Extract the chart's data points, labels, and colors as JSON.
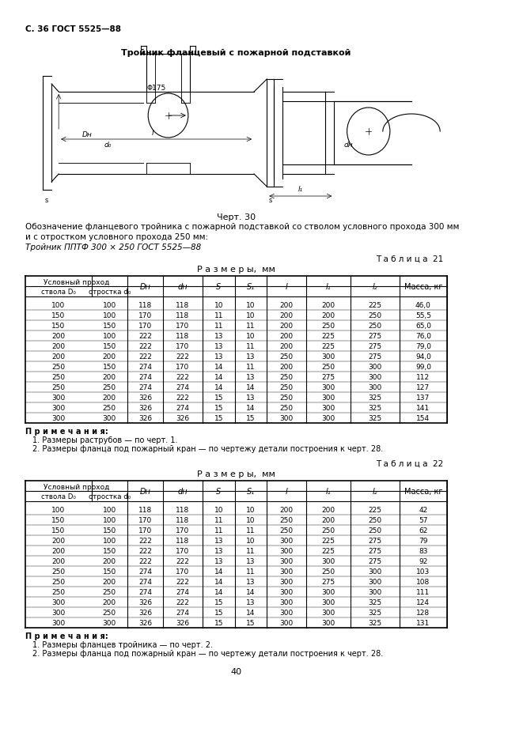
{
  "page_header": "С. 36 ГОСТ 5525—88",
  "drawing_title": "Тройник фланцевый с пожарной подставкой",
  "drawing_caption": "Черт. 30",
  "description_text": "Обозначение фланцевого тройника с пожарной подставкой со стволом условного прохода 300 мм\nи с отростком условного прохода 250 мм:",
  "example_label": "Тройник ППТФ 300 × 250 ГОСТ 5525—88",
  "table21_label": "Т а б л и ц а  21",
  "table21_subtitle": "Р а з м е р ы,  мм",
  "table21_data": [
    [
      100,
      100,
      118,
      118,
      10,
      10,
      200,
      200,
      225,
      "46,0"
    ],
    [
      150,
      100,
      170,
      118,
      11,
      10,
      200,
      200,
      250,
      "55,5"
    ],
    [
      150,
      150,
      170,
      170,
      11,
      11,
      200,
      250,
      250,
      "65,0"
    ],
    [
      200,
      100,
      222,
      118,
      13,
      10,
      200,
      225,
      275,
      "76,0"
    ],
    [
      200,
      150,
      222,
      170,
      13,
      11,
      200,
      225,
      275,
      "79,0"
    ],
    [
      200,
      200,
      222,
      222,
      13,
      13,
      250,
      300,
      275,
      "94,0"
    ],
    [
      250,
      150,
      274,
      170,
      14,
      11,
      200,
      250,
      300,
      "99,0"
    ],
    [
      250,
      200,
      274,
      222,
      14,
      13,
      250,
      275,
      300,
      "112"
    ],
    [
      250,
      250,
      274,
      274,
      14,
      14,
      250,
      300,
      300,
      "127"
    ],
    [
      300,
      200,
      326,
      222,
      15,
      13,
      250,
      300,
      325,
      "137"
    ],
    [
      300,
      250,
      326,
      274,
      15,
      14,
      250,
      300,
      325,
      "141"
    ],
    [
      300,
      300,
      326,
      326,
      15,
      15,
      300,
      300,
      325,
      "154"
    ]
  ],
  "table21_notes": [
    "П р и м е ч а н и я:",
    "1. Размеры раструбов — по черт. 1.",
    "2. Размеры фланца под пожарный кран — по чертежу детали построения к черт. 28."
  ],
  "table22_label": "Т а б л и ц а  22",
  "table22_subtitle": "Р а з м е р ы,  мм",
  "table22_data": [
    [
      100,
      100,
      118,
      118,
      10,
      10,
      200,
      200,
      225,
      "42"
    ],
    [
      150,
      100,
      170,
      118,
      11,
      10,
      250,
      200,
      250,
      "57"
    ],
    [
      150,
      150,
      170,
      170,
      11,
      11,
      250,
      250,
      250,
      "62"
    ],
    [
      200,
      100,
      222,
      118,
      13,
      10,
      300,
      225,
      275,
      "79"
    ],
    [
      200,
      150,
      222,
      170,
      13,
      11,
      300,
      225,
      275,
      "83"
    ],
    [
      200,
      200,
      222,
      222,
      13,
      13,
      300,
      300,
      275,
      "92"
    ],
    [
      250,
      150,
      274,
      170,
      14,
      11,
      300,
      250,
      300,
      "103"
    ],
    [
      250,
      200,
      274,
      222,
      14,
      13,
      300,
      275,
      300,
      "108"
    ],
    [
      250,
      250,
      274,
      274,
      14,
      14,
      300,
      300,
      300,
      "111"
    ],
    [
      300,
      200,
      326,
      222,
      15,
      13,
      300,
      300,
      325,
      "124"
    ],
    [
      300,
      250,
      326,
      274,
      15,
      14,
      300,
      300,
      325,
      "128"
    ],
    [
      300,
      300,
      326,
      326,
      15,
      15,
      300,
      300,
      325,
      "131"
    ]
  ],
  "table22_notes": [
    "П р и м е ч а н и я:",
    "1. Размеры фланцев тройника — по черт. 2.",
    "2. Размеры фланца под пожарный кран — по чертежу детали построения к черт. 28."
  ],
  "page_number": "40",
  "bg_color": "#ffffff"
}
